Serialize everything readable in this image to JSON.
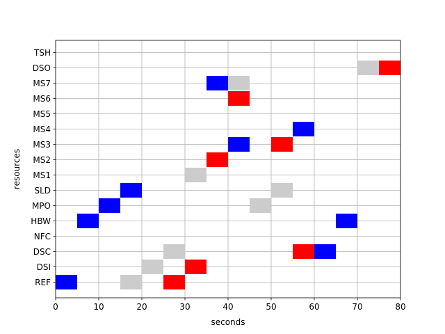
{
  "chart_data": {
    "type": "gantt",
    "title": "",
    "xlabel": "seconds",
    "ylabel": "resources",
    "xlim": [
      0,
      80
    ],
    "xticks": [
      0,
      10,
      20,
      30,
      40,
      50,
      60,
      70,
      80
    ],
    "grid": true,
    "resources": [
      "REF",
      "DSI",
      "DSC",
      "NFC",
      "HBW",
      "MPO",
      "SLD",
      "MS1",
      "MS2",
      "MS3",
      "MS4",
      "MS5",
      "MS6",
      "MS7",
      "DSO",
      "TSH"
    ],
    "colors": {
      "blue": "#0000ff",
      "red": "#ff0000",
      "gray": "#cccccc"
    },
    "tasks": [
      {
        "resource": "REF",
        "start": 0,
        "end": 5,
        "color": "blue"
      },
      {
        "resource": "REF",
        "start": 15,
        "end": 20,
        "color": "gray"
      },
      {
        "resource": "REF",
        "start": 25,
        "end": 30,
        "color": "red"
      },
      {
        "resource": "DSI",
        "start": 20,
        "end": 25,
        "color": "gray"
      },
      {
        "resource": "DSI",
        "start": 30,
        "end": 35,
        "color": "red"
      },
      {
        "resource": "DSC",
        "start": 25,
        "end": 30,
        "color": "gray"
      },
      {
        "resource": "DSC",
        "start": 55,
        "end": 60,
        "color": "red"
      },
      {
        "resource": "DSC",
        "start": 60,
        "end": 65,
        "color": "blue"
      },
      {
        "resource": "HBW",
        "start": 5,
        "end": 10,
        "color": "blue"
      },
      {
        "resource": "HBW",
        "start": 65,
        "end": 70,
        "color": "blue"
      },
      {
        "resource": "MPO",
        "start": 10,
        "end": 15,
        "color": "blue"
      },
      {
        "resource": "MPO",
        "start": 45,
        "end": 50,
        "color": "gray"
      },
      {
        "resource": "SLD",
        "start": 15,
        "end": 20,
        "color": "blue"
      },
      {
        "resource": "SLD",
        "start": 50,
        "end": 55,
        "color": "gray"
      },
      {
        "resource": "MS1",
        "start": 30,
        "end": 35,
        "color": "gray"
      },
      {
        "resource": "MS2",
        "start": 35,
        "end": 40,
        "color": "red"
      },
      {
        "resource": "MS3",
        "start": 40,
        "end": 45,
        "color": "blue"
      },
      {
        "resource": "MS3",
        "start": 50,
        "end": 55,
        "color": "red"
      },
      {
        "resource": "MS4",
        "start": 55,
        "end": 60,
        "color": "blue"
      },
      {
        "resource": "MS6",
        "start": 40,
        "end": 45,
        "color": "red"
      },
      {
        "resource": "MS7",
        "start": 35,
        "end": 40,
        "color": "blue"
      },
      {
        "resource": "MS7",
        "start": 40,
        "end": 45,
        "color": "gray"
      },
      {
        "resource": "DSO",
        "start": 70,
        "end": 75,
        "color": "gray"
      },
      {
        "resource": "DSO",
        "start": 75,
        "end": 80,
        "color": "red"
      }
    ]
  }
}
